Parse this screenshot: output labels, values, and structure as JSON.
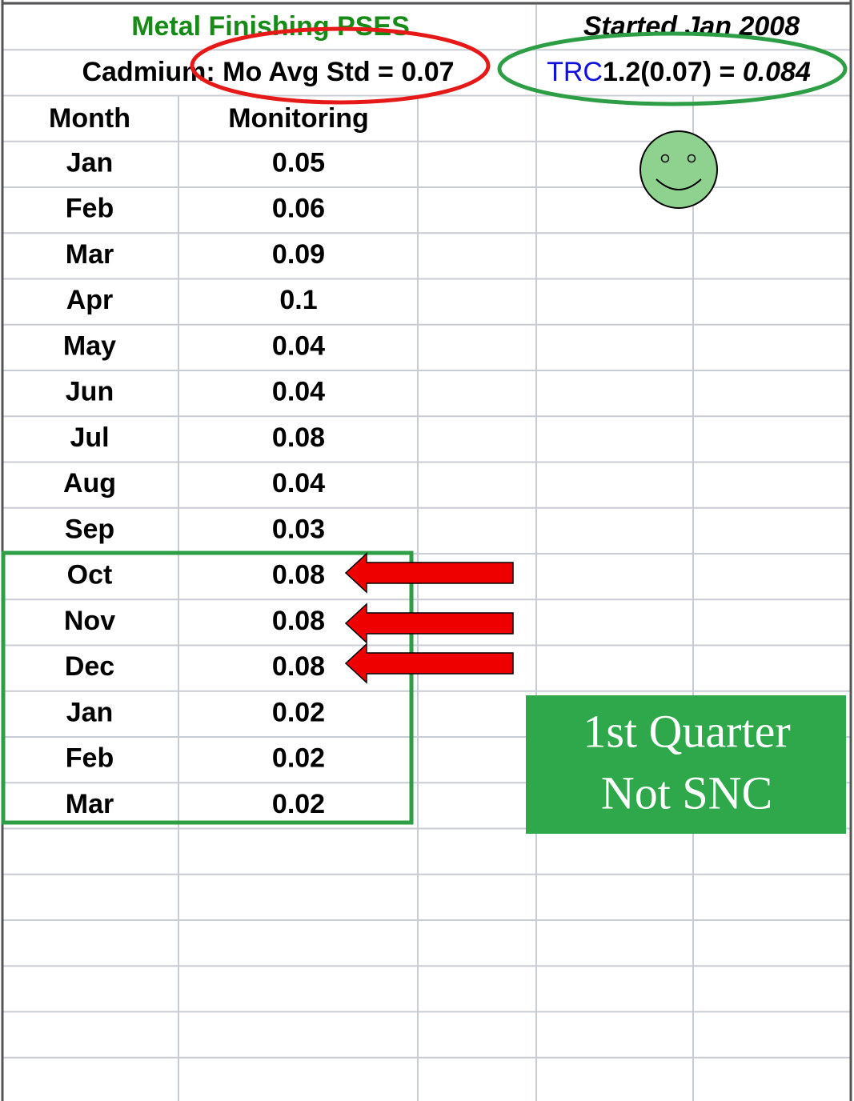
{
  "header": {
    "title": "Metal Finishing PSES",
    "note": "Started Jan 2008",
    "standard": "Cadmium: Mo Avg Std = 0.07",
    "formula": {
      "code": "TRC",
      "expression": "1.2(0.07) = ",
      "result": "0.084"
    }
  },
  "table": {
    "columns": [
      "Month",
      "Monitoring"
    ],
    "rows": [
      [
        "Jan",
        "0.05"
      ],
      [
        "Feb",
        "0.06"
      ],
      [
        "Mar",
        "0.09"
      ],
      [
        "Apr",
        "0.1"
      ],
      [
        "May",
        "0.04"
      ],
      [
        "Jun",
        "0.04"
      ],
      [
        "Jul",
        "0.08"
      ],
      [
        "Aug",
        "0.04"
      ],
      [
        "Sep",
        "0.03"
      ],
      [
        "Oct",
        "0.08"
      ],
      [
        "Nov",
        "0.08"
      ],
      [
        "Dec",
        "0.08"
      ],
      [
        "Jan",
        "0.02"
      ],
      [
        "Feb",
        "0.02"
      ],
      [
        "Mar",
        "0.02"
      ]
    ]
  },
  "callout": {
    "lines": [
      "1st Quarter",
      "Not SNC"
    ]
  }
}
